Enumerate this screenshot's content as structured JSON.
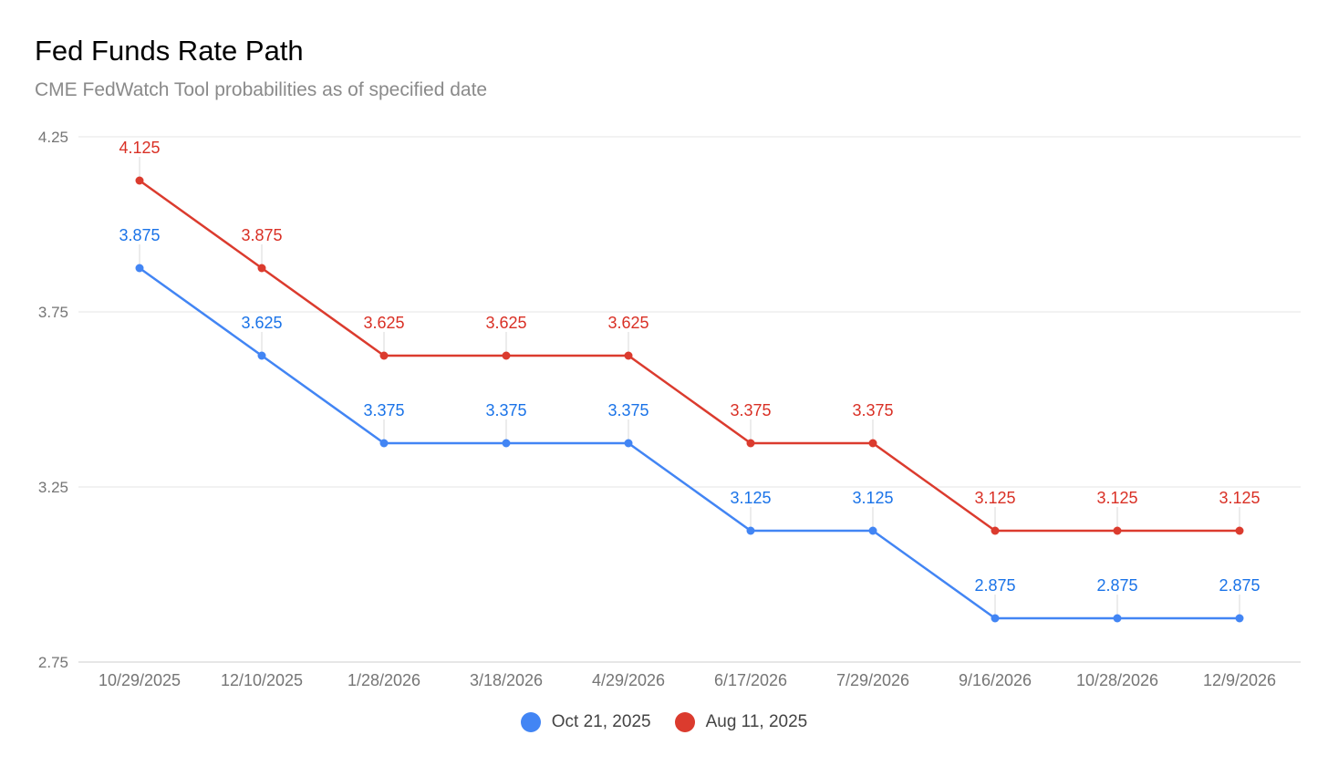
{
  "chart_data": {
    "type": "line",
    "title": "Fed Funds Rate Path",
    "subtitle": "CME FedWatch Tool probabilities as of specified date",
    "xlabel": "",
    "ylabel": "",
    "ylim": [
      2.75,
      4.25
    ],
    "yticks": [
      4.25,
      3.75,
      3.25,
      2.75
    ],
    "ytick_labels": [
      "4.25",
      "3.75",
      "3.25",
      "2.75"
    ],
    "grid": true,
    "legend_position": "bottom",
    "categories": [
      "10/29/2025",
      "12/10/2025",
      "1/28/2026",
      "3/18/2026",
      "4/29/2026",
      "6/17/2026",
      "7/29/2026",
      "9/16/2026",
      "10/28/2026",
      "12/9/2026"
    ],
    "series": [
      {
        "name": "Oct 21, 2025",
        "color": "#4285f4",
        "label_color": "#1a73e8",
        "values": [
          3.875,
          3.625,
          3.375,
          3.375,
          3.375,
          3.125,
          3.125,
          2.875,
          2.875,
          2.875
        ],
        "labels": [
          "3.875",
          "3.625",
          "3.375",
          "3.375",
          "3.375",
          "3.125",
          "3.125",
          "2.875",
          "2.875",
          "2.875"
        ]
      },
      {
        "name": "Aug 11, 2025",
        "color": "#db3b2e",
        "label_color": "#d93025",
        "values": [
          4.125,
          3.875,
          3.625,
          3.625,
          3.625,
          3.375,
          3.375,
          3.125,
          3.125,
          3.125
        ],
        "labels": [
          "4.125",
          "3.875",
          "3.625",
          "3.625",
          "3.625",
          "3.375",
          "3.375",
          "3.125",
          "3.125",
          "3.125"
        ]
      }
    ]
  }
}
